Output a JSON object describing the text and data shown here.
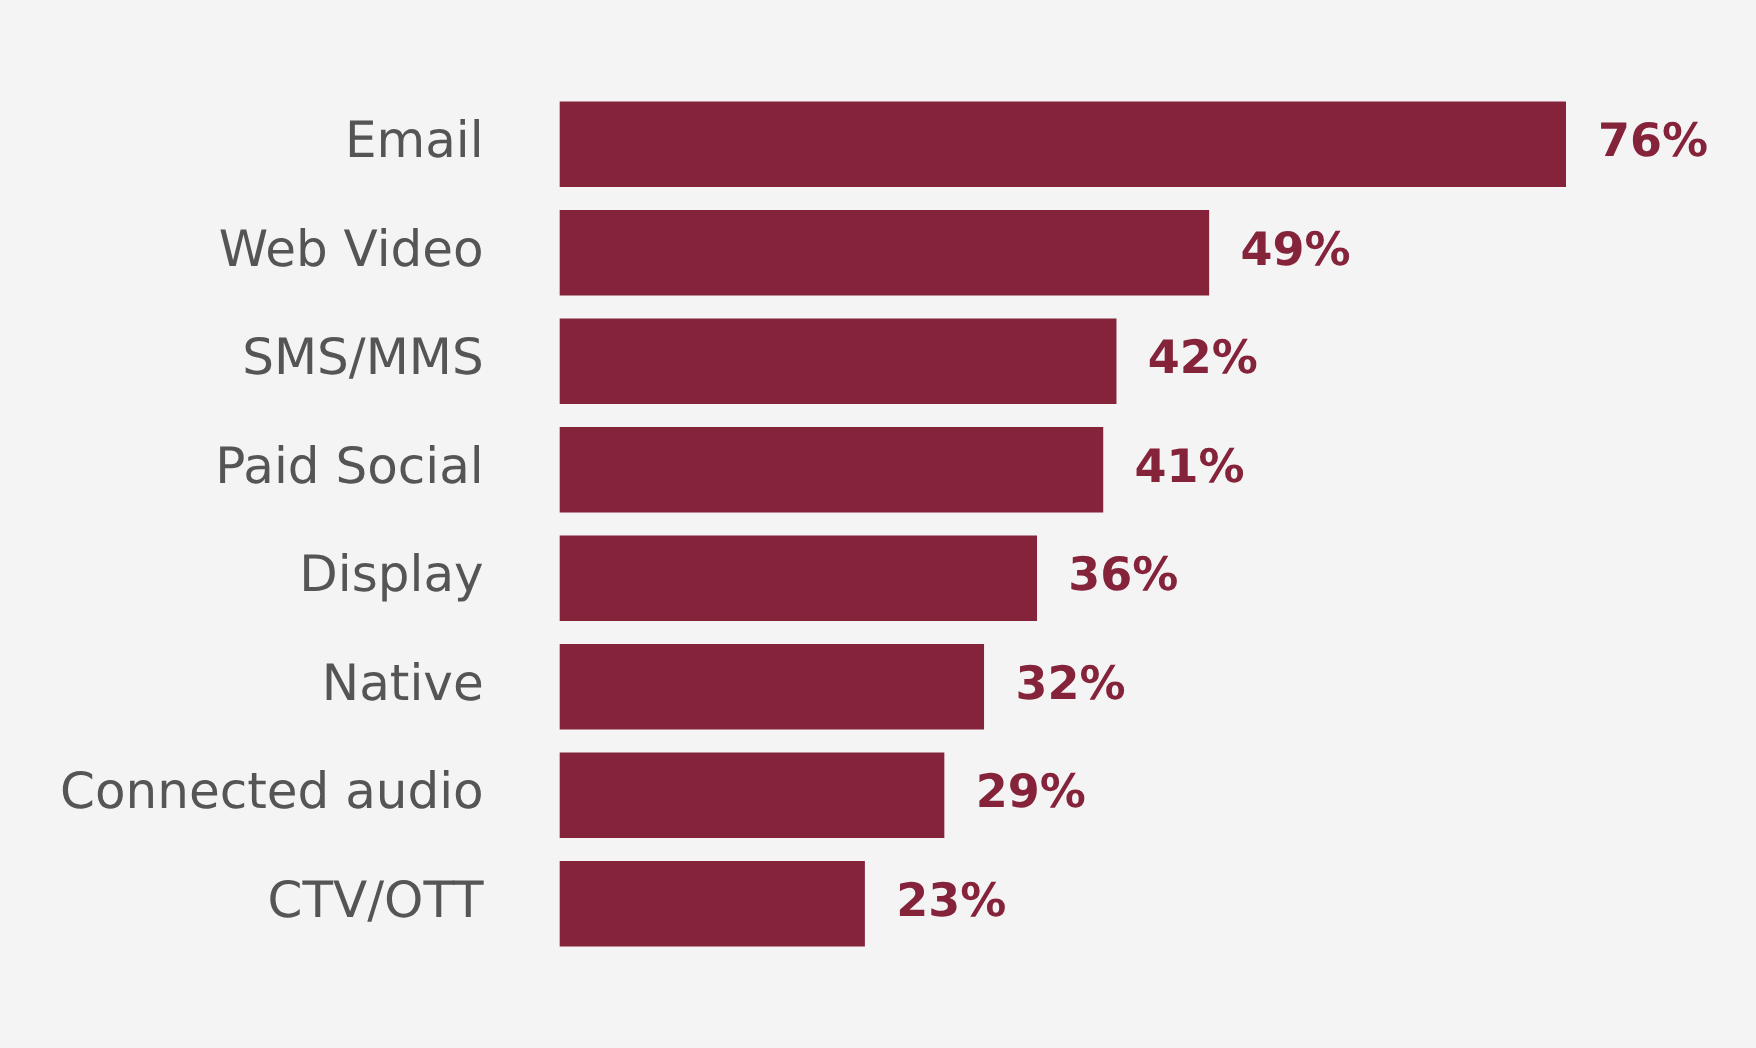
{
  "chart_data": {
    "type": "bar",
    "orientation": "horizontal",
    "categories": [
      "Email",
      "Web Video",
      "SMS/MMS",
      "Paid Social",
      "Display",
      "Native",
      "Connected audio",
      "CTV/OTT"
    ],
    "values": [
      76,
      49,
      42,
      41,
      36,
      32,
      29,
      23
    ],
    "value_labels": [
      "76%",
      "49%",
      "42%",
      "41%",
      "36%",
      "32%",
      "29%",
      "23%"
    ],
    "color": "#84233a",
    "tick_labels": "y"
  }
}
